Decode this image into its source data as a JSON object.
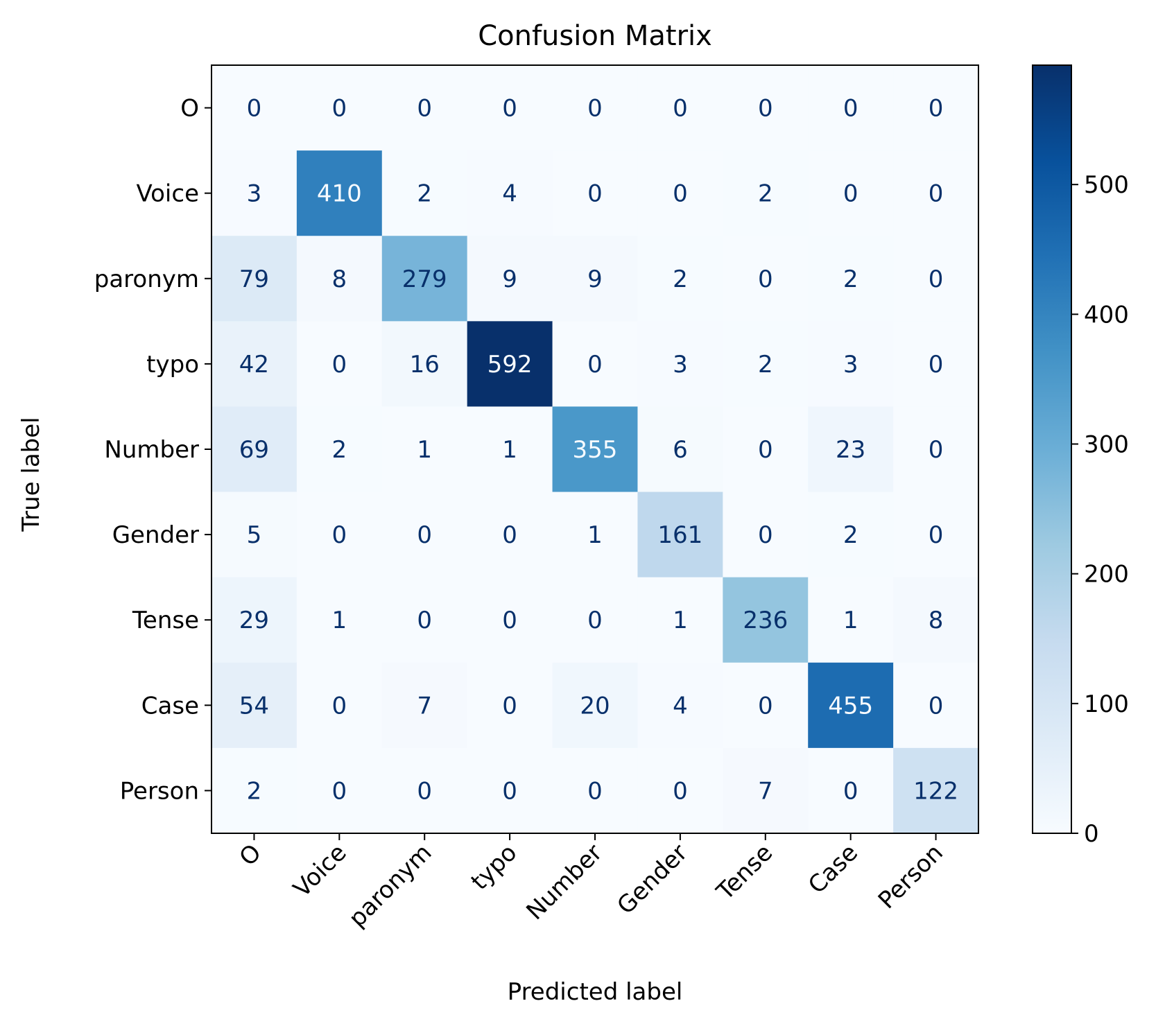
{
  "chart_data": {
    "type": "heatmap",
    "title": "Confusion Matrix",
    "xlabel": "Predicted label",
    "ylabel": "True label",
    "x_categories": [
      "O",
      "Voice",
      "paronym",
      "typo",
      "Number",
      "Gender",
      "Tense",
      "Case",
      "Person"
    ],
    "y_categories": [
      "O",
      "Voice",
      "paronym",
      "typo",
      "Number",
      "Gender",
      "Tense",
      "Case",
      "Person"
    ],
    "values": [
      [
        0,
        0,
        0,
        0,
        0,
        0,
        0,
        0,
        0
      ],
      [
        3,
        410,
        2,
        4,
        0,
        0,
        2,
        0,
        0
      ],
      [
        79,
        8,
        279,
        9,
        9,
        2,
        0,
        2,
        0
      ],
      [
        42,
        0,
        16,
        592,
        0,
        3,
        2,
        3,
        0
      ],
      [
        69,
        2,
        1,
        1,
        355,
        6,
        0,
        23,
        0
      ],
      [
        5,
        0,
        0,
        0,
        1,
        161,
        0,
        2,
        0
      ],
      [
        29,
        1,
        0,
        0,
        0,
        1,
        236,
        1,
        8
      ],
      [
        54,
        0,
        7,
        0,
        20,
        4,
        0,
        455,
        0
      ],
      [
        2,
        0,
        0,
        0,
        0,
        0,
        7,
        0,
        122
      ]
    ],
    "colormap": "Blues",
    "colorbar": {
      "range": [
        0,
        592
      ],
      "ticks": [
        0,
        100,
        200,
        300,
        400,
        500
      ]
    },
    "x_tick_rotation": 45,
    "grid": false
  }
}
